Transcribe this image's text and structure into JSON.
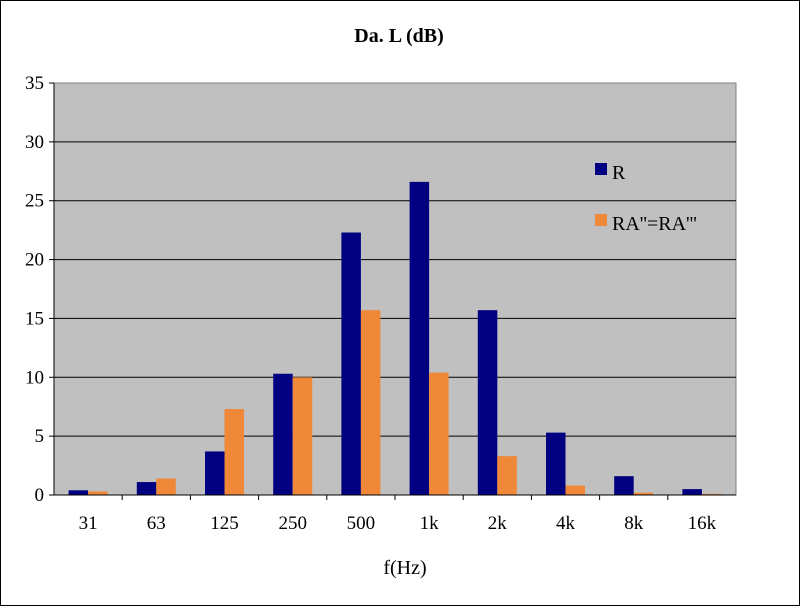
{
  "chart_data": {
    "type": "bar",
    "title": "Da. L (dB)",
    "xlabel": "f(Hz)",
    "ylabel": "",
    "categories": [
      "31",
      "63",
      "125",
      "250",
      "500",
      "1k",
      "2k",
      "4k",
      "8k",
      "16k"
    ],
    "ylim": [
      0,
      35
    ],
    "yticks": [
      0,
      5,
      10,
      15,
      20,
      25,
      30,
      35
    ],
    "grid": true,
    "legend_position": "right",
    "plot_background": "#c0c0c0",
    "series": [
      {
        "name": "R",
        "color": "#000080",
        "values": [
          0.4,
          1.1,
          3.7,
          10.3,
          22.3,
          26.6,
          15.7,
          5.3,
          1.6,
          0.5
        ]
      },
      {
        "name": "RA''=RA'''",
        "color": "#f0883a",
        "values": [
          0.3,
          1.4,
          7.3,
          10.0,
          15.7,
          10.4,
          3.3,
          0.8,
          0.2,
          0.1
        ]
      }
    ]
  }
}
